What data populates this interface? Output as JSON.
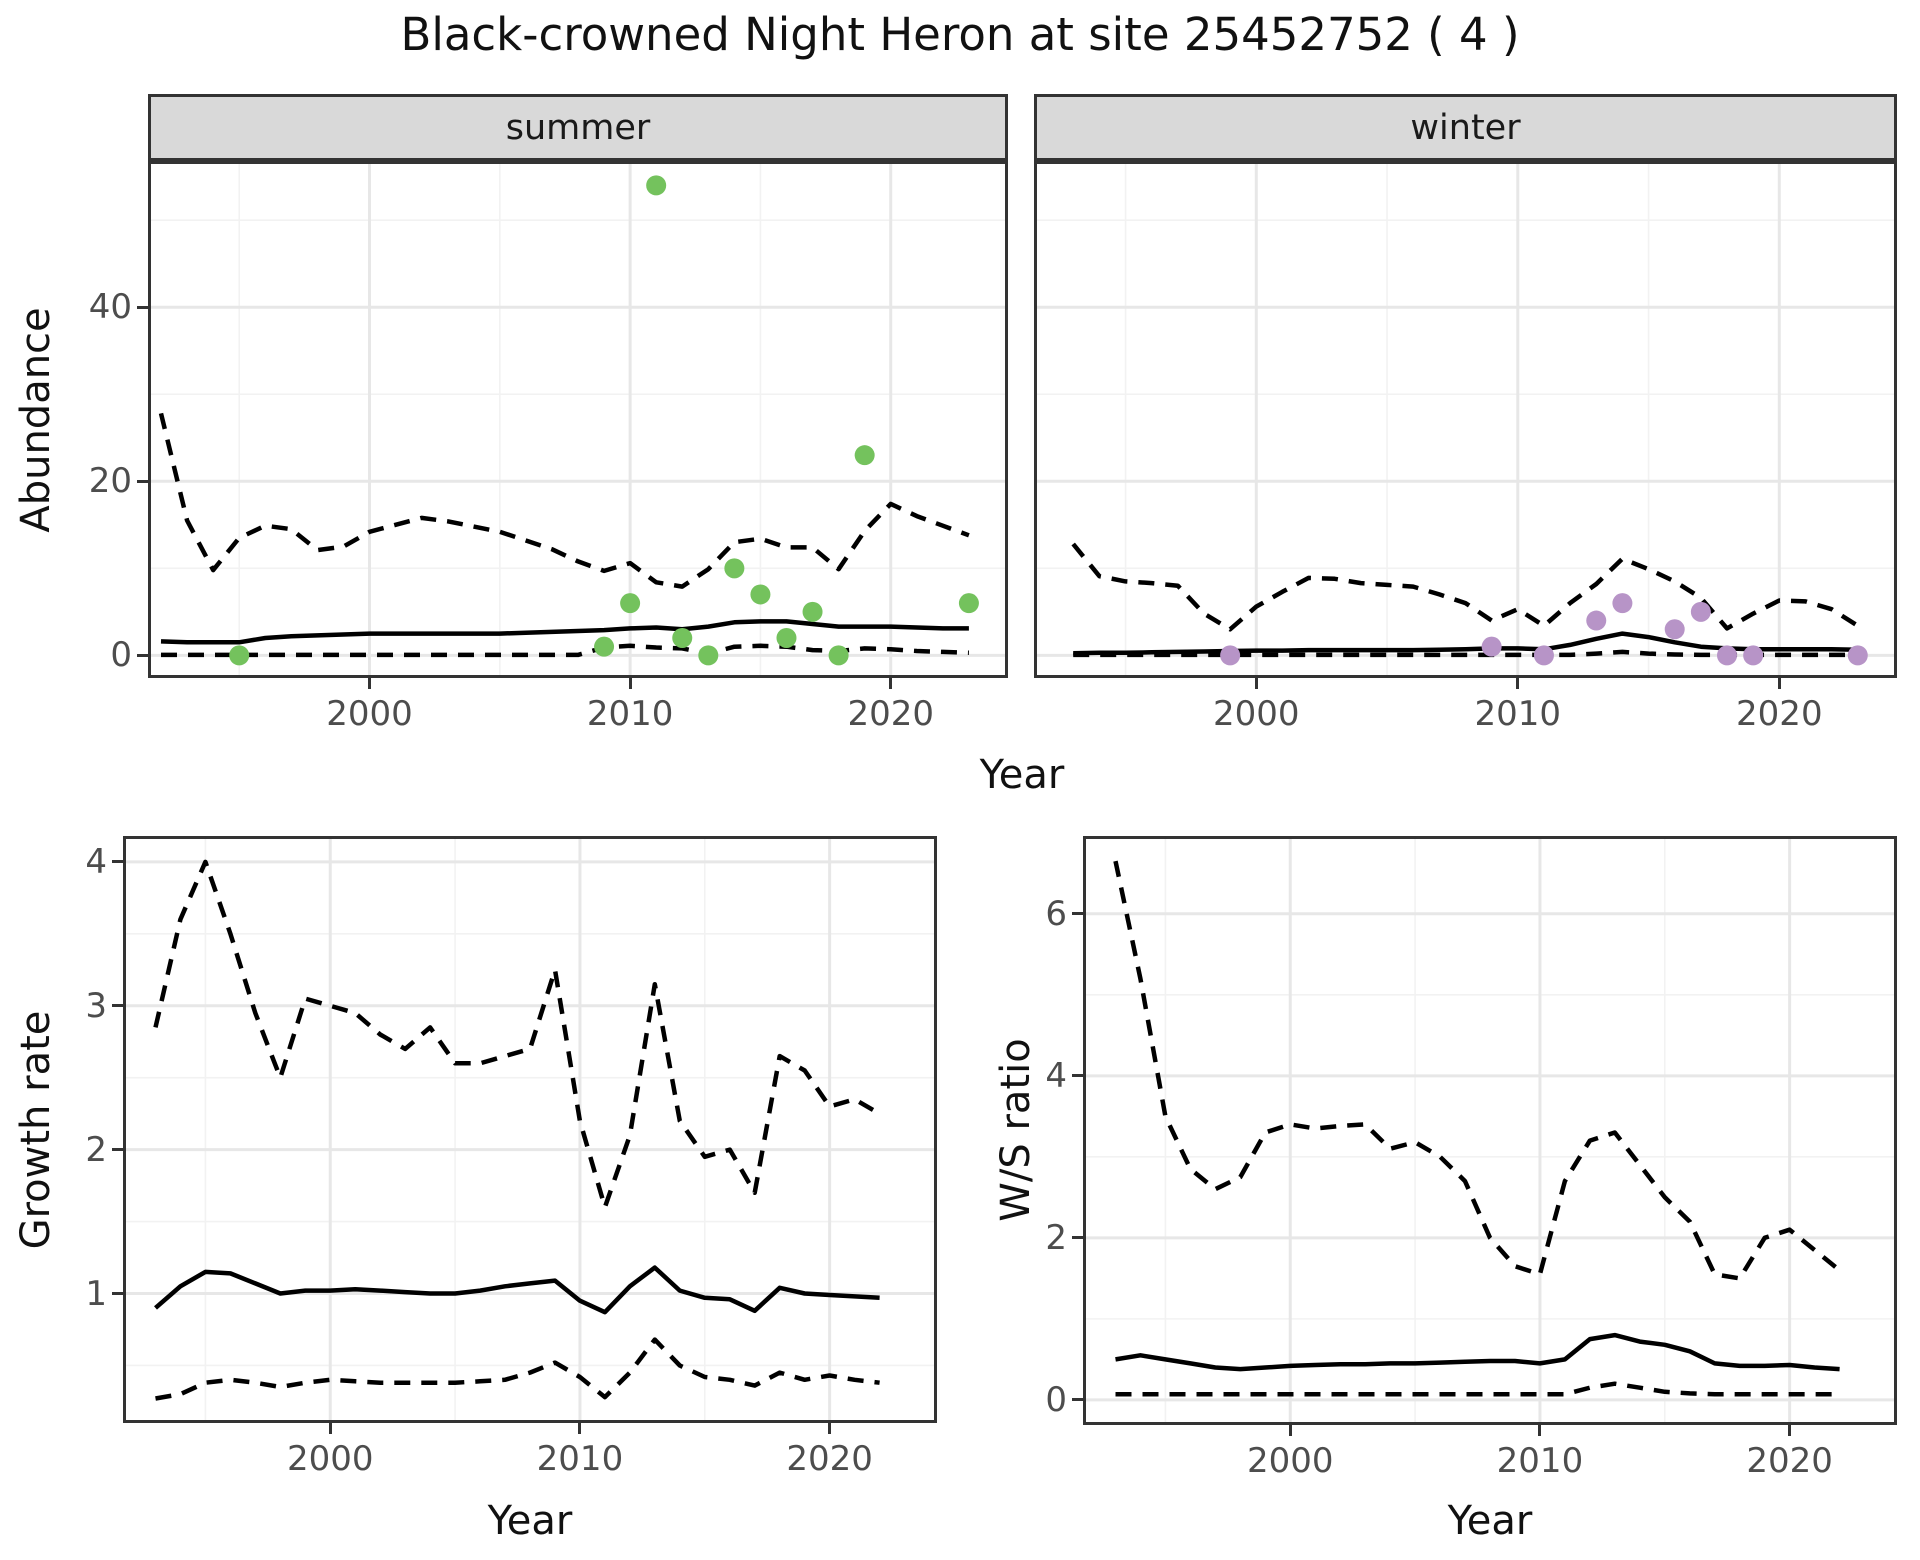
{
  "title": "Black-crowned Night Heron at site 25452752 ( 4 )",
  "colors": {
    "summer_points": "#74C25D",
    "winter_points": "#B794C7",
    "line": "#000000",
    "strip_background": "#D9D9D9",
    "panel_border": "#333333",
    "gridline": "#E7E7E7",
    "tick_text": "#4D4D4D"
  },
  "axes": {
    "abundance_label": "Abundance",
    "top_x_label": "Year",
    "growth_label": "Growth rate",
    "growth_x_label": "Year",
    "ws_label": "W/S ratio",
    "ws_x_label": "Year"
  },
  "chart_data": [
    {
      "key": "summer",
      "type": "line+scatter",
      "facet_label": "summer",
      "xlabel": "Year",
      "ylabel": "Abundance",
      "xlim": [
        1991.5,
        2024.5
      ],
      "ylim": [
        -2.6,
        56.8
      ],
      "x_ticks": [
        2000,
        2010,
        2020
      ],
      "x_tick_labels": [
        "2000",
        "2010",
        "2020"
      ],
      "x_minor": [
        1995,
        2005,
        2015
      ],
      "y_ticks": [
        0,
        20,
        40
      ],
      "y_tick_labels": [
        "0",
        "20",
        "40"
      ],
      "y_minor": [
        10,
        30,
        50
      ],
      "series": [
        {
          "name": "upper_ci",
          "style": "dashed",
          "x": [
            1992,
            1993,
            1994,
            1995,
            1996,
            1997,
            1998,
            1999,
            2000,
            2001,
            2002,
            2003,
            2004,
            2005,
            2006,
            2007,
            2008,
            2009,
            2010,
            2011,
            2012,
            2013,
            2014,
            2015,
            2016,
            2017,
            2018,
            2019,
            2020,
            2021,
            2022,
            2023
          ],
          "y": [
            27.8,
            15.5,
            9.8,
            13.5,
            14.9,
            14.5,
            12.1,
            12.5,
            14.2,
            15.0,
            15.8,
            15.4,
            14.8,
            14.2,
            13.2,
            12.2,
            10.8,
            9.7,
            10.6,
            8.4,
            7.9,
            9.9,
            13.0,
            13.4,
            12.4,
            12.4,
            9.9,
            14.3,
            17.4,
            16.0,
            14.9,
            13.8
          ]
        },
        {
          "name": "lower_ci",
          "style": "dashed",
          "x": [
            1992,
            1993,
            1994,
            1995,
            1996,
            1997,
            1998,
            1999,
            2000,
            2001,
            2002,
            2003,
            2004,
            2005,
            2006,
            2007,
            2008,
            2009,
            2010,
            2011,
            2012,
            2013,
            2014,
            2015,
            2016,
            2017,
            2018,
            2019,
            2020,
            2021,
            2022,
            2023
          ],
          "y": [
            0.05,
            0.05,
            0.05,
            0.05,
            0.05,
            0.05,
            0.05,
            0.05,
            0.05,
            0.05,
            0.05,
            0.05,
            0.05,
            0.05,
            0.05,
            0.05,
            0.05,
            0.9,
            1.1,
            0.9,
            0.8,
            0.2,
            1.0,
            1.1,
            1.0,
            0.6,
            0.5,
            0.8,
            0.7,
            0.5,
            0.4,
            0.3
          ]
        },
        {
          "name": "median",
          "style": "solid",
          "x": [
            1992,
            1993,
            1994,
            1995,
            1996,
            1997,
            1998,
            1999,
            2000,
            2001,
            2002,
            2003,
            2004,
            2005,
            2006,
            2007,
            2008,
            2009,
            2010,
            2011,
            2012,
            2013,
            2014,
            2015,
            2016,
            2017,
            2018,
            2019,
            2020,
            2021,
            2022,
            2023
          ],
          "y": [
            1.6,
            1.5,
            1.5,
            1.5,
            2.0,
            2.2,
            2.3,
            2.4,
            2.5,
            2.5,
            2.5,
            2.5,
            2.5,
            2.5,
            2.6,
            2.7,
            2.8,
            2.9,
            3.1,
            3.2,
            3.0,
            3.3,
            3.8,
            3.9,
            3.9,
            3.6,
            3.3,
            3.3,
            3.3,
            3.2,
            3.1,
            3.1
          ]
        }
      ],
      "points": {
        "color": "#74C25D",
        "x": [
          1995,
          2009,
          2010,
          2011,
          2012,
          2013,
          2014,
          2015,
          2016,
          2017,
          2018,
          2019,
          2023
        ],
        "y": [
          0,
          1,
          6,
          54,
          2,
          0,
          10,
          7,
          2,
          5,
          0,
          23,
          6
        ]
      }
    },
    {
      "key": "winter",
      "type": "line+scatter",
      "facet_label": "winter",
      "xlabel": "Year",
      "ylabel": "Abundance",
      "xlim": [
        1991.5,
        2024.5
      ],
      "ylim": [
        -2.6,
        56.8
      ],
      "x_ticks": [
        2000,
        2010,
        2020
      ],
      "x_tick_labels": [
        "2000",
        "2010",
        "2020"
      ],
      "x_minor": [
        1995,
        2005,
        2015
      ],
      "y_ticks": [
        0,
        20,
        40
      ],
      "y_tick_labels": [
        "",
        "",
        ""
      ],
      "y_minor": [
        10,
        30,
        50
      ],
      "series": [
        {
          "name": "upper_ci",
          "style": "dashed",
          "x": [
            1993,
            1994,
            1995,
            1996,
            1997,
            1998,
            1999,
            2000,
            2001,
            2002,
            2003,
            2004,
            2005,
            2006,
            2007,
            2008,
            2009,
            2010,
            2011,
            2012,
            2013,
            2014,
            2015,
            2016,
            2017,
            2018,
            2019,
            2020,
            2021,
            2022,
            2023
          ],
          "y": [
            12.8,
            9.1,
            8.5,
            8.3,
            8.0,
            4.8,
            3.0,
            5.6,
            7.3,
            8.9,
            8.8,
            8.3,
            8.1,
            7.9,
            7.0,
            6.0,
            4.0,
            5.3,
            3.4,
            6.0,
            8.2,
            11.1,
            9.9,
            8.5,
            6.6,
            3.1,
            4.8,
            6.3,
            6.2,
            5.3,
            3.4
          ]
        },
        {
          "name": "lower_ci",
          "style": "dashed",
          "x": [
            1993,
            1994,
            1995,
            1996,
            1997,
            1998,
            1999,
            2000,
            2001,
            2002,
            2003,
            2004,
            2005,
            2006,
            2007,
            2008,
            2009,
            2010,
            2011,
            2012,
            2013,
            2014,
            2015,
            2016,
            2017,
            2018,
            2019,
            2020,
            2021,
            2022,
            2023
          ],
          "y": [
            0.05,
            0.05,
            0.05,
            0.05,
            0.05,
            0.05,
            0.05,
            0.05,
            0.05,
            0.05,
            0.05,
            0.05,
            0.05,
            0.05,
            0.05,
            0.05,
            0.05,
            0.05,
            0.05,
            0.05,
            0.2,
            0.4,
            0.2,
            0.1,
            0.05,
            0.05,
            0.05,
            0.05,
            0.05,
            0.05,
            0.05
          ]
        },
        {
          "name": "median",
          "style": "solid",
          "x": [
            1993,
            1994,
            1995,
            1996,
            1997,
            1998,
            1999,
            2000,
            2001,
            2002,
            2003,
            2004,
            2005,
            2006,
            2007,
            2008,
            2009,
            2010,
            2011,
            2012,
            2013,
            2014,
            2015,
            2016,
            2017,
            2018,
            2019,
            2020,
            2021,
            2022,
            2023
          ],
          "y": [
            0.25,
            0.3,
            0.3,
            0.35,
            0.4,
            0.45,
            0.5,
            0.55,
            0.55,
            0.6,
            0.6,
            0.6,
            0.6,
            0.6,
            0.65,
            0.7,
            0.8,
            0.8,
            0.7,
            1.2,
            1.9,
            2.5,
            2.1,
            1.5,
            1.0,
            0.8,
            0.7,
            0.7,
            0.7,
            0.7,
            0.65
          ]
        }
      ],
      "points": {
        "color": "#B794C7",
        "x": [
          1999,
          2009,
          2011,
          2013,
          2014,
          2016,
          2017,
          2018,
          2019,
          2023
        ],
        "y": [
          0,
          1,
          0,
          4,
          6,
          3,
          5,
          0,
          0,
          0
        ]
      }
    },
    {
      "key": "growth",
      "type": "line",
      "facet_label": "",
      "xlabel": "Year",
      "ylabel": "Growth rate",
      "xlim": [
        1991.7,
        2024.3
      ],
      "ylim": [
        0.1,
        4.18
      ],
      "x_ticks": [
        2000,
        2010,
        2020
      ],
      "x_tick_labels": [
        "2000",
        "2010",
        "2020"
      ],
      "x_minor": [
        1995,
        2005,
        2015
      ],
      "y_ticks": [
        1,
        2,
        3,
        4
      ],
      "y_tick_labels": [
        "1",
        "2",
        "3",
        "4"
      ],
      "y_minor": [
        0.5,
        1.5,
        2.5,
        3.5
      ],
      "series": [
        {
          "name": "upper_ci",
          "style": "dashed",
          "x": [
            1993,
            1994,
            1995,
            1996,
            1997,
            1998,
            1999,
            2000,
            2001,
            2002,
            2003,
            2004,
            2005,
            2006,
            2007,
            2008,
            2009,
            2010,
            2011,
            2012,
            2013,
            2014,
            2015,
            2016,
            2017,
            2018,
            2019,
            2020,
            2021,
            2022
          ],
          "y": [
            2.85,
            3.6,
            4.0,
            3.5,
            2.95,
            2.5,
            3.05,
            3.0,
            2.95,
            2.8,
            2.7,
            2.85,
            2.6,
            2.6,
            2.65,
            2.7,
            3.25,
            2.2,
            1.6,
            2.1,
            3.15,
            2.2,
            1.95,
            2.0,
            1.7,
            2.65,
            2.55,
            2.3,
            2.35,
            2.25
          ]
        },
        {
          "name": "lower_ci",
          "style": "dashed",
          "x": [
            1993,
            1994,
            1995,
            1996,
            1997,
            1998,
            1999,
            2000,
            2001,
            2002,
            2003,
            2004,
            2005,
            2006,
            2007,
            2008,
            2009,
            2010,
            2011,
            2012,
            2013,
            2014,
            2015,
            2016,
            2017,
            2018,
            2019,
            2020,
            2021,
            2022
          ],
          "y": [
            0.27,
            0.3,
            0.38,
            0.4,
            0.38,
            0.35,
            0.38,
            0.4,
            0.39,
            0.38,
            0.38,
            0.38,
            0.38,
            0.39,
            0.4,
            0.45,
            0.52,
            0.42,
            0.28,
            0.45,
            0.68,
            0.5,
            0.42,
            0.4,
            0.36,
            0.45,
            0.4,
            0.43,
            0.4,
            0.38
          ]
        },
        {
          "name": "median",
          "style": "solid",
          "x": [
            1993,
            1994,
            1995,
            1996,
            1997,
            1998,
            1999,
            2000,
            2001,
            2002,
            2003,
            2004,
            2005,
            2006,
            2007,
            2008,
            2009,
            2010,
            2011,
            2012,
            2013,
            2014,
            2015,
            2016,
            2017,
            2018,
            2019,
            2020,
            2021,
            2022
          ],
          "y": [
            0.9,
            1.05,
            1.15,
            1.14,
            1.07,
            1.0,
            1.02,
            1.02,
            1.03,
            1.02,
            1.01,
            1.0,
            1.0,
            1.02,
            1.05,
            1.07,
            1.09,
            0.95,
            0.87,
            1.05,
            1.18,
            1.02,
            0.97,
            0.96,
            0.88,
            1.04,
            1.0,
            0.99,
            0.98,
            0.97
          ]
        }
      ],
      "points": null
    },
    {
      "key": "ws",
      "type": "line",
      "facet_label": "",
      "xlabel": "Year",
      "ylabel": "W/S ratio",
      "xlim": [
        1991.7,
        2024.3
      ],
      "ylim": [
        -0.31,
        6.96
      ],
      "x_ticks": [
        2000,
        2010,
        2020
      ],
      "x_tick_labels": [
        "2000",
        "2010",
        "2020"
      ],
      "x_minor": [
        1995,
        2005,
        2015
      ],
      "y_ticks": [
        0,
        2,
        4,
        6
      ],
      "y_tick_labels": [
        "0",
        "2",
        "4",
        "6"
      ],
      "y_minor": [
        1,
        3,
        5
      ],
      "series": [
        {
          "name": "upper_ci",
          "style": "dashed",
          "x": [
            1993,
            1994,
            1995,
            1996,
            1997,
            1998,
            1999,
            2000,
            2001,
            2002,
            2003,
            2004,
            2005,
            2006,
            2007,
            2008,
            2009,
            2010,
            2011,
            2012,
            2013,
            2014,
            2015,
            2016,
            2017,
            2018,
            2019,
            2020,
            2021,
            2022
          ],
          "y": [
            6.65,
            5.2,
            3.5,
            2.85,
            2.6,
            2.75,
            3.3,
            3.4,
            3.35,
            3.38,
            3.4,
            3.1,
            3.18,
            3.0,
            2.7,
            2.0,
            1.65,
            1.55,
            2.7,
            3.2,
            3.3,
            2.9,
            2.5,
            2.2,
            1.55,
            1.5,
            2.0,
            2.1,
            1.85,
            1.6
          ]
        },
        {
          "name": "lower_ci",
          "style": "dashed",
          "x": [
            1993,
            1994,
            1995,
            1996,
            1997,
            1998,
            1999,
            2000,
            2001,
            2002,
            2003,
            2004,
            2005,
            2006,
            2007,
            2008,
            2009,
            2010,
            2011,
            2012,
            2013,
            2014,
            2015,
            2016,
            2017,
            2018,
            2019,
            2020,
            2021,
            2022
          ],
          "y": [
            0.07,
            0.07,
            0.07,
            0.07,
            0.07,
            0.07,
            0.07,
            0.07,
            0.07,
            0.07,
            0.07,
            0.07,
            0.07,
            0.07,
            0.07,
            0.07,
            0.07,
            0.07,
            0.07,
            0.15,
            0.2,
            0.15,
            0.1,
            0.08,
            0.07,
            0.07,
            0.07,
            0.07,
            0.07,
            0.07
          ]
        },
        {
          "name": "median",
          "style": "solid",
          "x": [
            1993,
            1994,
            1995,
            1996,
            1997,
            1998,
            1999,
            2000,
            2001,
            2002,
            2003,
            2004,
            2005,
            2006,
            2007,
            2008,
            2009,
            2010,
            2011,
            2012,
            2013,
            2014,
            2015,
            2016,
            2017,
            2018,
            2019,
            2020,
            2021,
            2022
          ],
          "y": [
            0.5,
            0.55,
            0.5,
            0.45,
            0.4,
            0.38,
            0.4,
            0.42,
            0.43,
            0.44,
            0.44,
            0.45,
            0.45,
            0.46,
            0.47,
            0.48,
            0.48,
            0.45,
            0.5,
            0.75,
            0.8,
            0.72,
            0.68,
            0.6,
            0.45,
            0.42,
            0.42,
            0.43,
            0.4,
            0.38
          ]
        }
      ],
      "points": null
    }
  ]
}
